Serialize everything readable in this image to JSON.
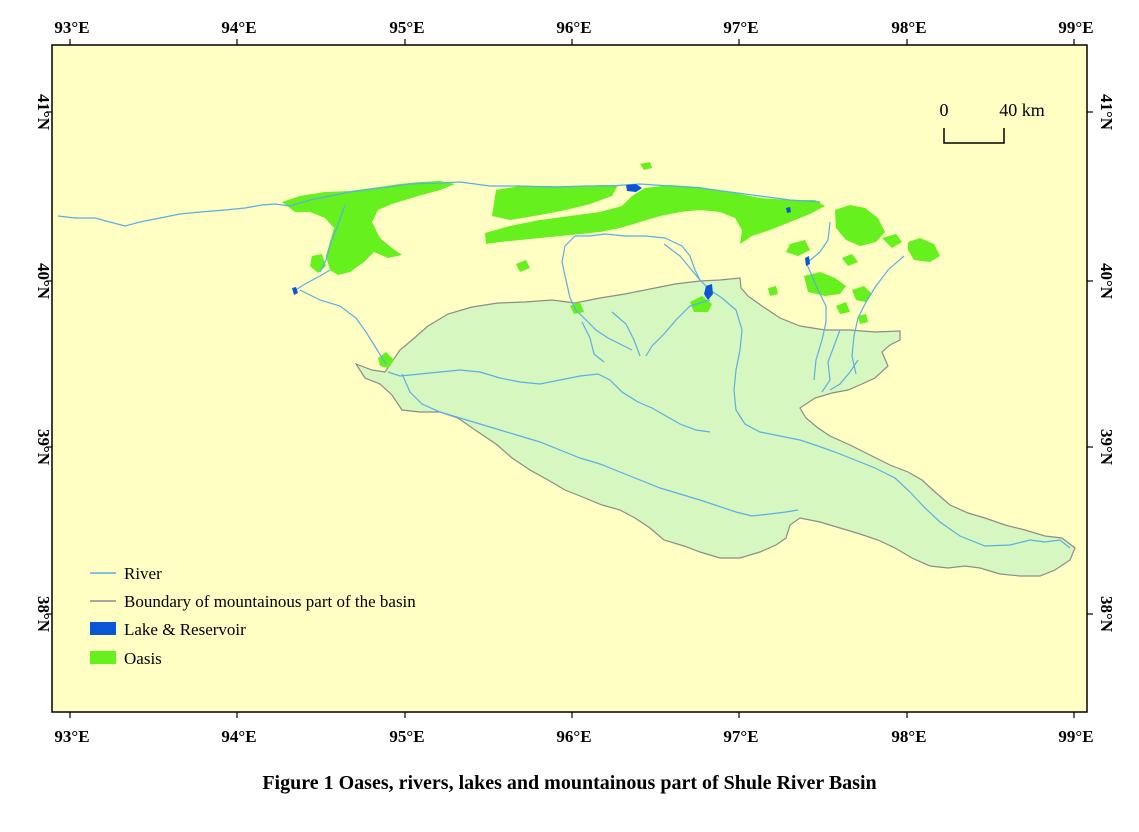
{
  "map": {
    "caption": "Figure 1  Oases, rivers, lakes and mountainous part of Shule River Basin",
    "x_ticks": [
      "93°E",
      "94°E",
      "95°E",
      "96°E",
      "97°E",
      "98°E",
      "99°E"
    ],
    "y_ticks": [
      "41°N",
      "40°N",
      "39°N",
      "38°N"
    ],
    "scale_bar": {
      "start": "0",
      "end": "40 km"
    },
    "legend": [
      {
        "label": "River",
        "symbol": "line",
        "color": "#5aaee8"
      },
      {
        "label": "Boundary of  mountainous part of the basin",
        "symbol": "line",
        "color": "#8c8c8c"
      },
      {
        "label": "Lake & Reservoir",
        "symbol": "patch",
        "color": "#0a56d6"
      },
      {
        "label": "Oasis",
        "symbol": "patch",
        "color": "#66f01e"
      }
    ],
    "colors": {
      "background": "#ffffc4",
      "basin_fill": "#d6f7c0",
      "boundary": "#8c8c8c",
      "river": "#5aaee8",
      "lake": "#0a56d6",
      "oasis": "#66f01e"
    }
  }
}
